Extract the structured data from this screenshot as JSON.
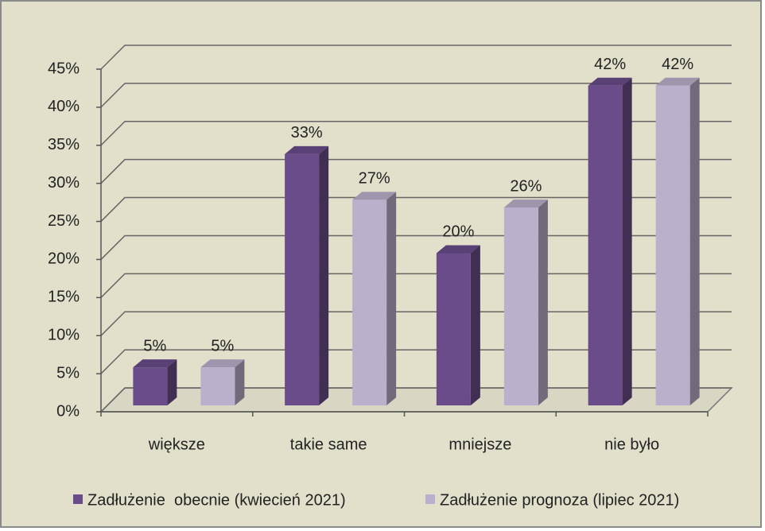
{
  "chart_data": {
    "type": "bar3d",
    "categories": [
      "większe",
      "takie same",
      "mniejsze",
      "nie było"
    ],
    "series": [
      {
        "name": "Zadłużenie  obecnie (kwiecień 2021)",
        "color": "#6a4c8a",
        "values": [
          5,
          33,
          20,
          42
        ],
        "value_labels": [
          "5%",
          "33%",
          "20%",
          "42%"
        ]
      },
      {
        "name": "Zadłużenie prognoza (lipiec 2021)",
        "color": "#bbb0cc",
        "values": [
          5,
          27,
          26,
          42
        ],
        "value_labels": [
          "5%",
          "27%",
          "26%",
          "42%"
        ]
      }
    ],
    "ylim": [
      0,
      45
    ],
    "yticks": [
      {
        "value": 0,
        "label": "0%"
      },
      {
        "value": 5,
        "label": "5%"
      },
      {
        "value": 10,
        "label": "10%"
      },
      {
        "value": 15,
        "label": "15%"
      },
      {
        "value": 20,
        "label": "20%"
      },
      {
        "value": 25,
        "label": "25%"
      },
      {
        "value": 30,
        "label": "30%"
      },
      {
        "value": 35,
        "label": "35%"
      },
      {
        "value": 40,
        "label": "40%"
      },
      {
        "value": 45,
        "label": "45%"
      }
    ],
    "grid": true,
    "legend": "bottom"
  }
}
